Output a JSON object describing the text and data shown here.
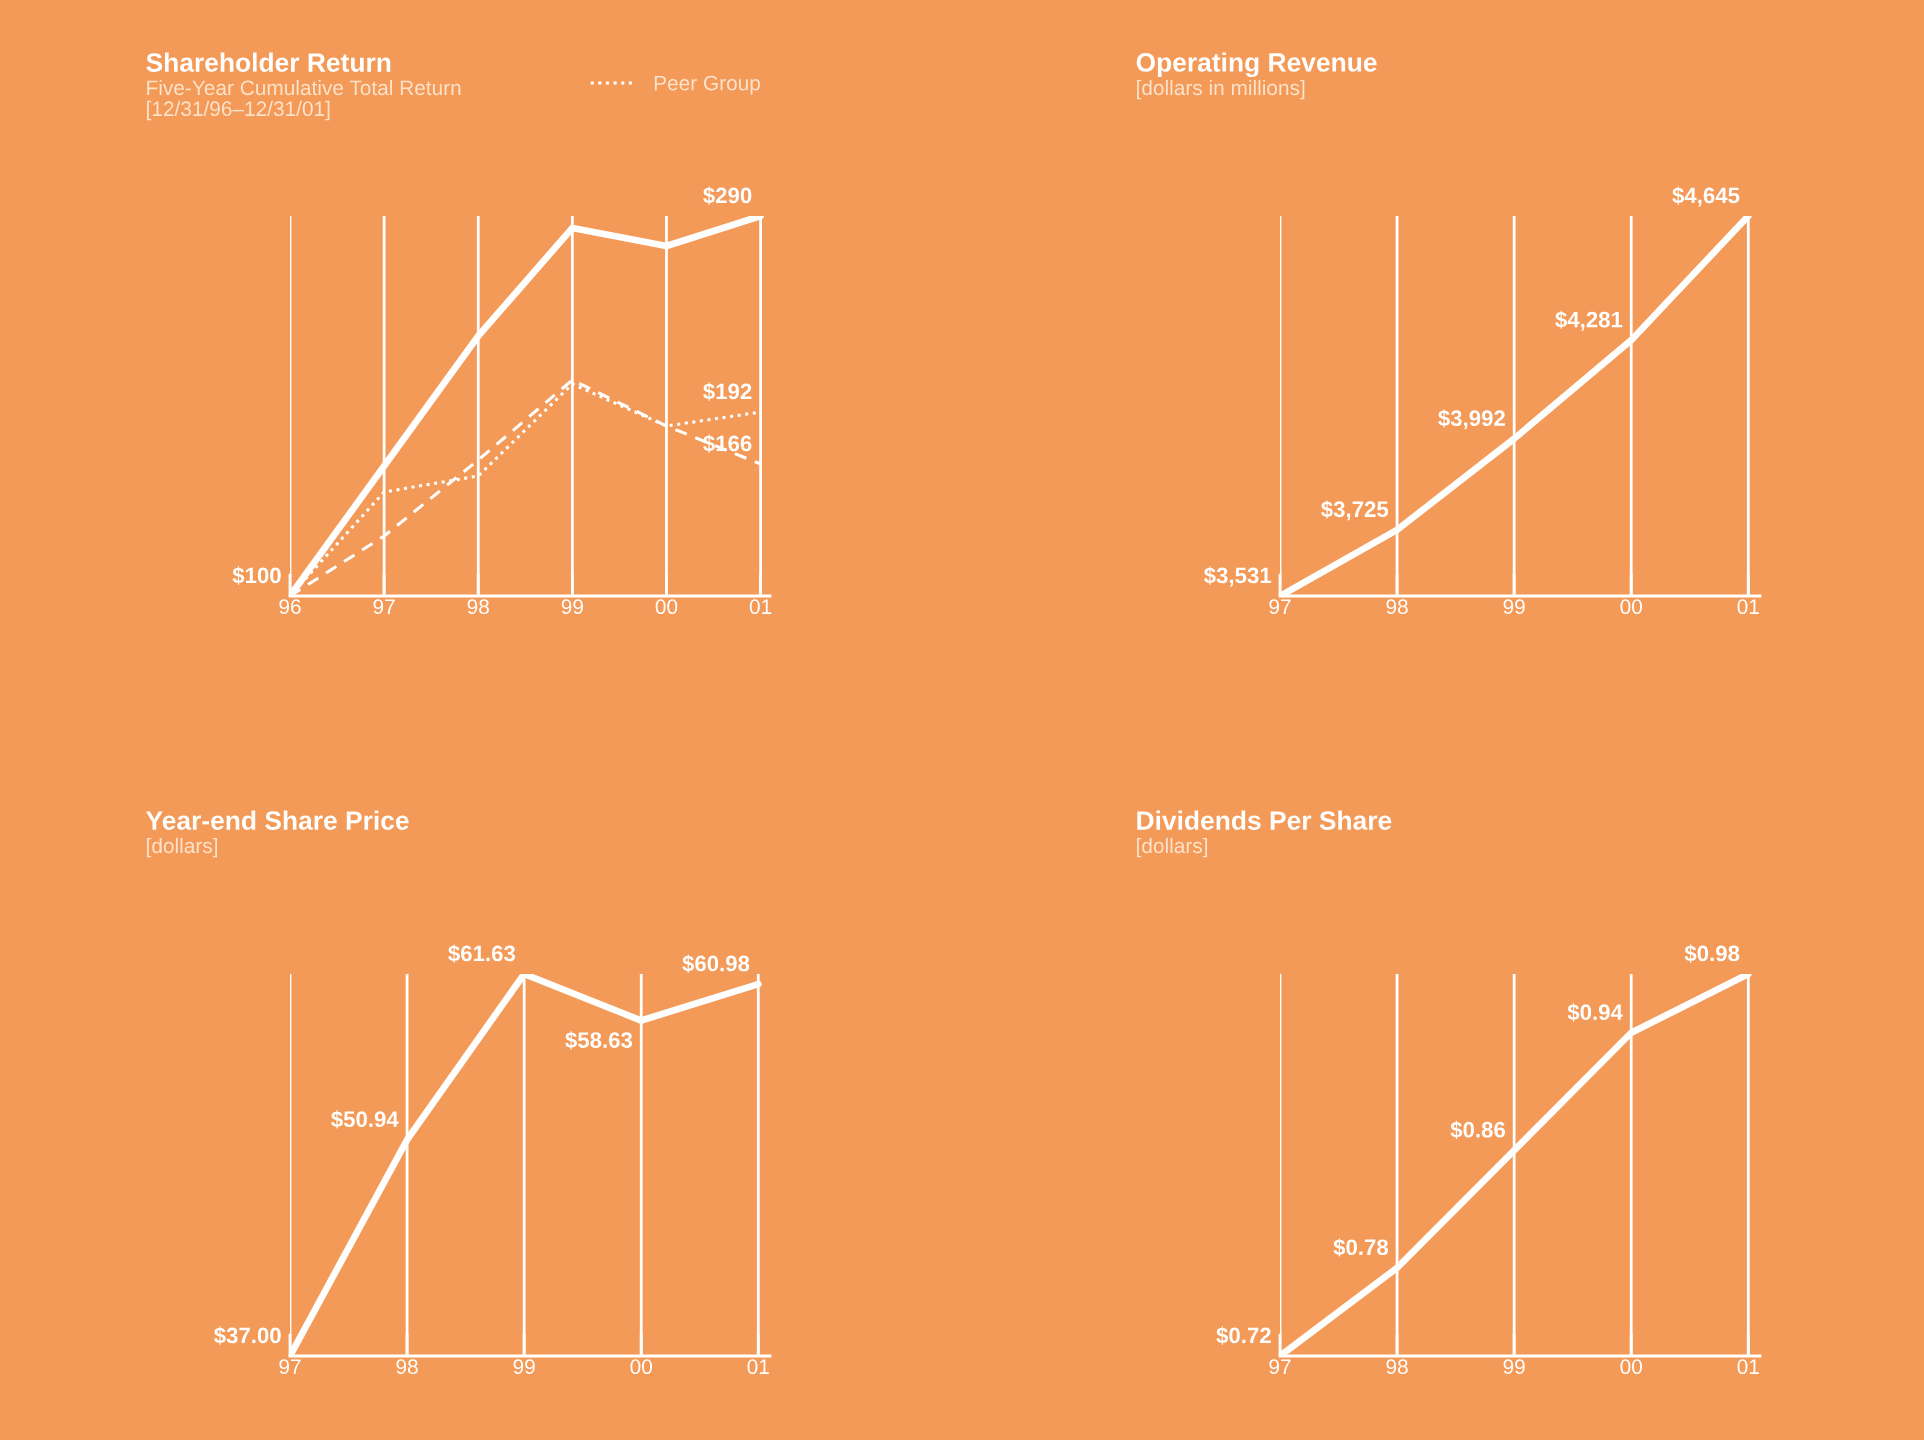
{
  "chart_data": [
    {
      "type": "line",
      "title": "Shareholder Return",
      "subtitle": "Five-Year Cumulative Total Return\n[12/31/96–12/31/01]",
      "categories": [
        "96",
        "97",
        "98",
        "99",
        "00",
        "01"
      ],
      "ylim": [
        100,
        290
      ],
      "tick_labels": "x",
      "grid": "x",
      "legend": "top right",
      "series": [
        {
          "color": "#ffffff",
          "line_style": "solid",
          "values": [
            100,
            165,
            230,
            284,
            275,
            290
          ],
          "value_labels": [
            "$100",
            null,
            null,
            null,
            null,
            "$290"
          ]
        },
        {
          "color": "#ffffff",
          "line_style": "dashed",
          "values": [
            100,
            130,
            168,
            208,
            185,
            166
          ],
          "value_labels": [
            null,
            null,
            null,
            null,
            null,
            "$166"
          ]
        },
        {
          "name": "Peer Group",
          "color": "#ffffff",
          "line_style": "dotted",
          "values": [
            100,
            152,
            160,
            206,
            185,
            192
          ],
          "value_labels": [
            null,
            null,
            null,
            null,
            null,
            "$192"
          ]
        }
      ]
    },
    {
      "type": "line",
      "title": "Operating Revenue",
      "subtitle": "[dollars in millions]",
      "categories": [
        "97",
        "98",
        "99",
        "00",
        "01"
      ],
      "ylim": [
        3531,
        4645
      ],
      "tick_labels": "x",
      "grid": "x",
      "series": [
        {
          "color": "#ffffff",
          "line_style": "solid",
          "values": [
            3531,
            3725,
            3992,
            4281,
            4645
          ],
          "value_labels": [
            "$3,531",
            "$3,725",
            "$3,992",
            "$4,281",
            "$4,645"
          ]
        }
      ]
    },
    {
      "type": "line",
      "title": "Year-end Share Price",
      "subtitle": "[dollars]",
      "categories": [
        "97",
        "98",
        "99",
        "00",
        "01"
      ],
      "ylim": [
        37.0,
        61.63
      ],
      "tick_labels": "x",
      "grid": "x",
      "series": [
        {
          "color": "#ffffff",
          "line_style": "solid",
          "values": [
            37.0,
            50.94,
            61.63,
            58.63,
            60.98
          ],
          "value_labels": [
            "$37.00",
            "$50.94",
            "$61.63",
            "$58.63",
            "$60.98"
          ]
        }
      ]
    },
    {
      "type": "line",
      "title": "Dividends Per Share",
      "subtitle": "[dollars]",
      "categories": [
        "97",
        "98",
        "99",
        "00",
        "01"
      ],
      "ylim": [
        0.72,
        0.98
      ],
      "tick_labels": "x",
      "grid": "x",
      "series": [
        {
          "color": "#ffffff",
          "line_style": "solid",
          "values": [
            0.72,
            0.78,
            0.86,
            0.94,
            0.98
          ],
          "value_labels": [
            "$0.72",
            "$0.78",
            "$0.86",
            "$0.94",
            "$0.98"
          ]
        }
      ]
    }
  ]
}
